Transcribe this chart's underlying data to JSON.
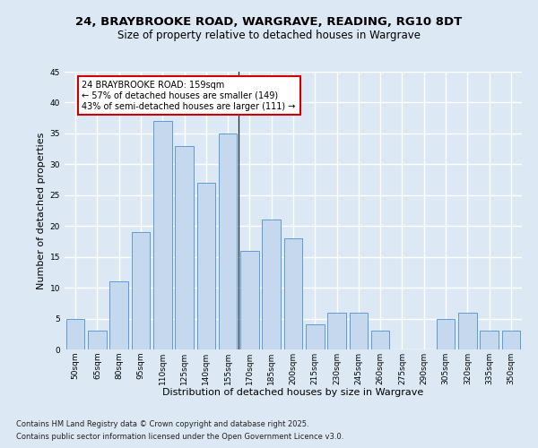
{
  "title1": "24, BRAYBROOKE ROAD, WARGRAVE, READING, RG10 8DT",
  "title2": "Size of property relative to detached houses in Wargrave",
  "xlabel": "Distribution of detached houses by size in Wargrave",
  "ylabel": "Number of detached properties",
  "categories": [
    "50sqm",
    "65sqm",
    "80sqm",
    "95sqm",
    "110sqm",
    "125sqm",
    "140sqm",
    "155sqm",
    "170sqm",
    "185sqm",
    "200sqm",
    "215sqm",
    "230sqm",
    "245sqm",
    "260sqm",
    "275sqm",
    "290sqm",
    "305sqm",
    "320sqm",
    "335sqm",
    "350sqm"
  ],
  "values": [
    5,
    3,
    11,
    19,
    37,
    33,
    27,
    35,
    16,
    21,
    18,
    4,
    6,
    6,
    3,
    0,
    0,
    5,
    6,
    3,
    3
  ],
  "bar_color": "#c5d8ed",
  "bar_edge_color": "#5b9bd5",
  "annotation_title": "24 BRAYBROOKE ROAD: 159sqm",
  "annotation_line1": "← 57% of detached houses are smaller (149)",
  "annotation_line2": "43% of semi-detached houses are larger (111) →",
  "annotation_box_color": "#ffffff",
  "annotation_border_color": "#cc0000",
  "ylim": [
    0,
    45
  ],
  "yticks": [
    0,
    5,
    10,
    15,
    20,
    25,
    30,
    35,
    40,
    45
  ],
  "footnote1": "Contains HM Land Registry data © Crown copyright and database right 2025.",
  "footnote2": "Contains public sector information licensed under the Open Government Licence v3.0.",
  "bg_color": "#dce9f5",
  "plot_bg_color": "#dce9f5",
  "grid_color": "#ffffff",
  "title_fontsize": 9.5,
  "subtitle_fontsize": 8.5,
  "axis_label_fontsize": 8,
  "tick_fontsize": 6.5,
  "annotation_fontsize": 7,
  "footnote_fontsize": 6
}
